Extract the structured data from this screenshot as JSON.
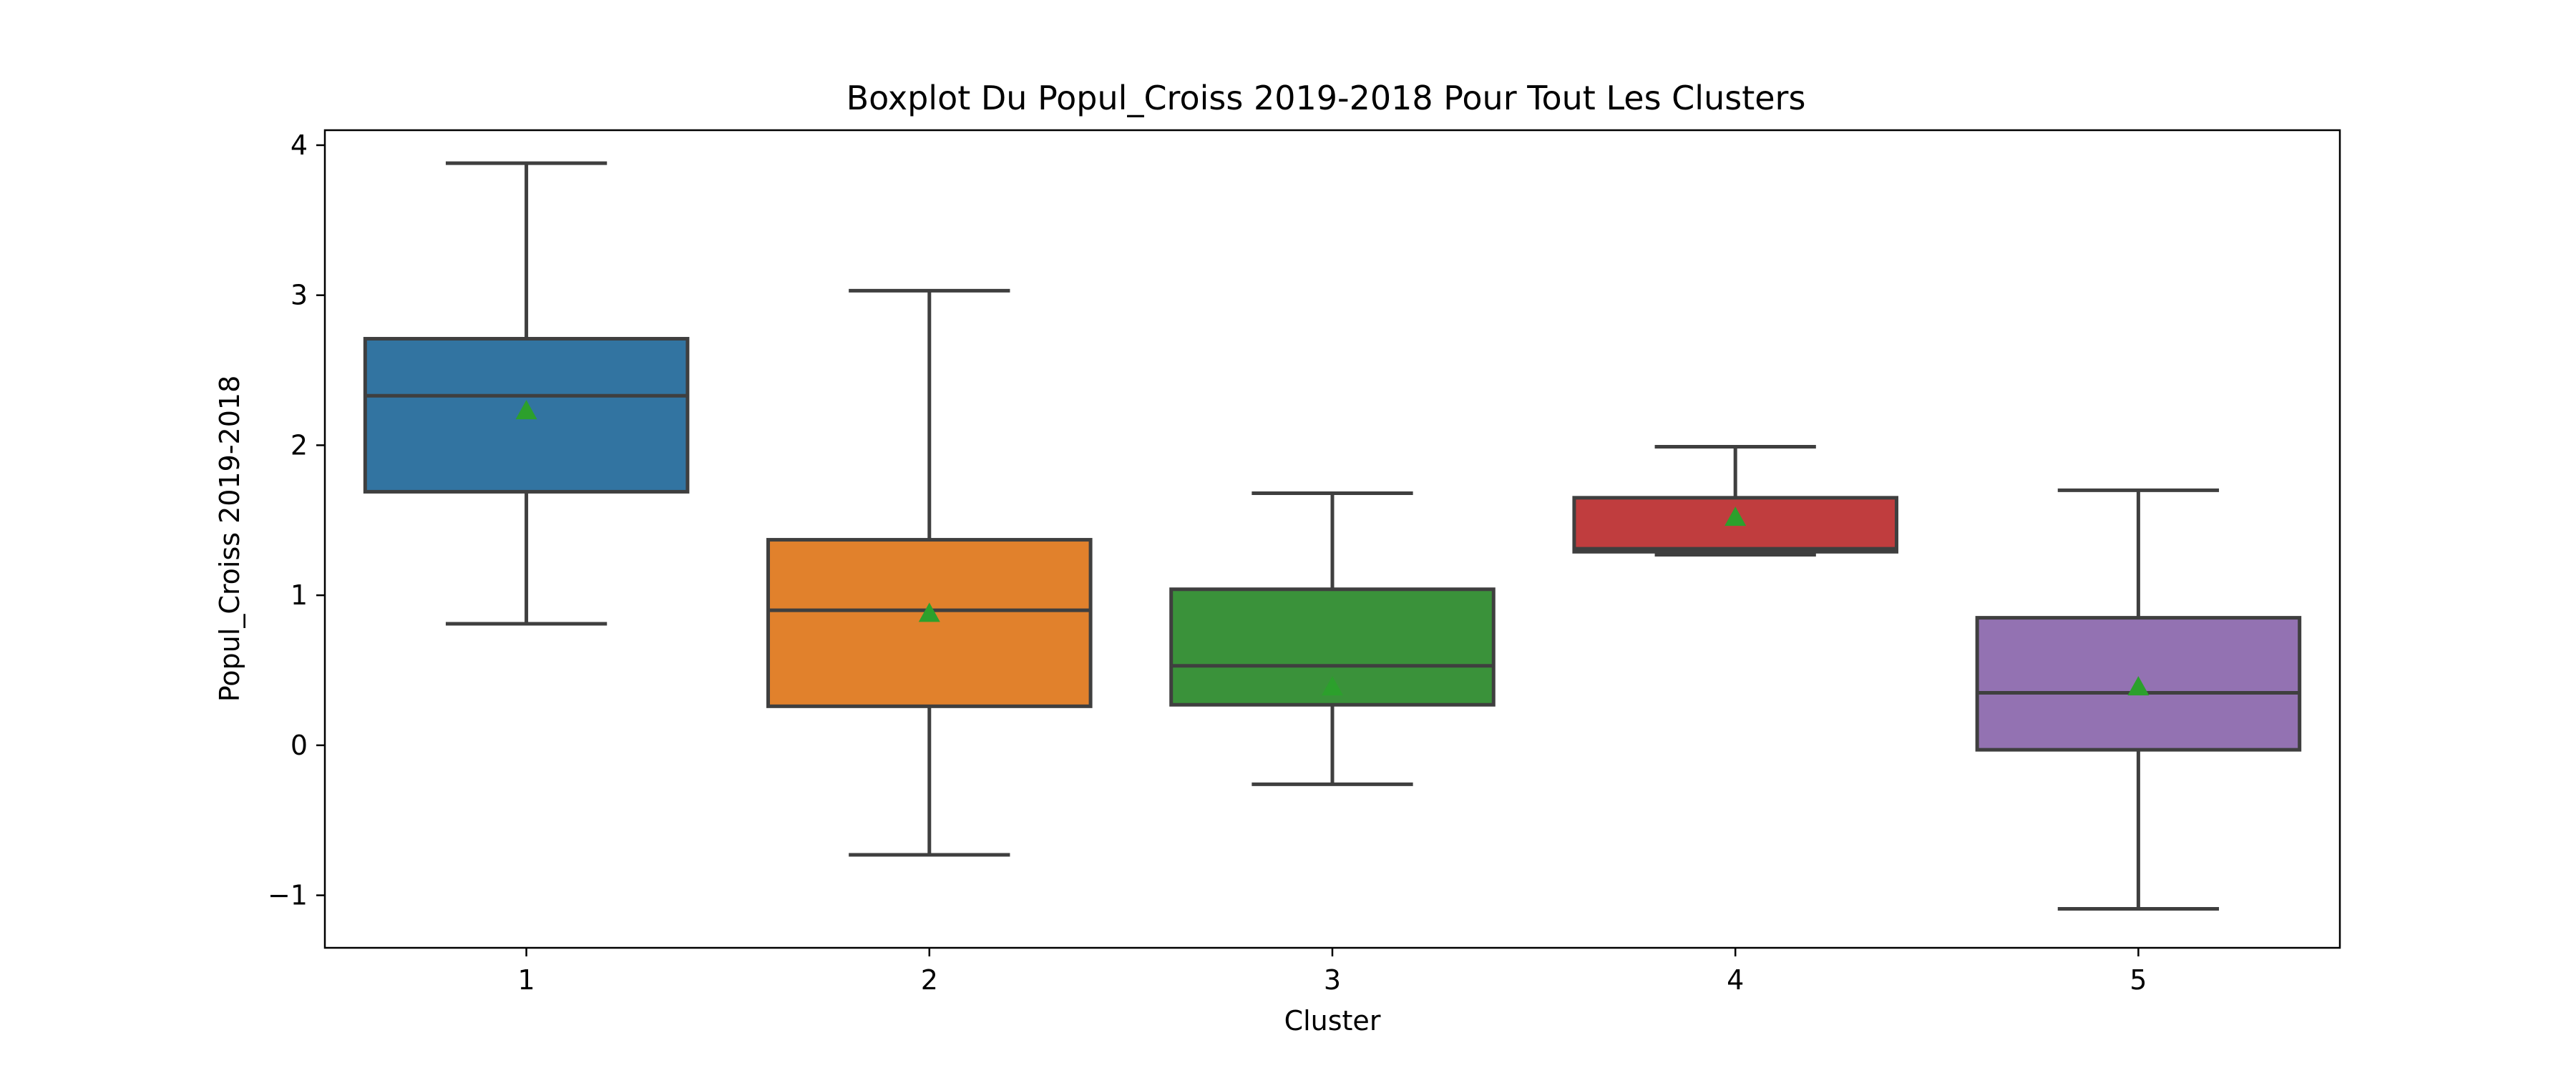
{
  "chart_data": {
    "type": "boxplot",
    "title": "Boxplot Du Popul_Croiss 2019-2018 Pour Tout Les Clusters",
    "xlabel": "Cluster",
    "ylabel": "Popul_Croiss 2019-2018",
    "ylim": [
      -1.35,
      4.1
    ],
    "yticks": [
      -1,
      0,
      1,
      2,
      3,
      4
    ],
    "ytick_labels": [
      "−1",
      "0",
      "1",
      "2",
      "3",
      "4"
    ],
    "grid": false,
    "show_means": true,
    "mean_marker_color": "#2ca02c",
    "line_color": "#3f3f3f",
    "categories": [
      "1",
      "2",
      "3",
      "4",
      "5"
    ],
    "boxes": [
      {
        "category": "1",
        "whisker_low": 0.81,
        "q1": 1.69,
        "median": 2.33,
        "q3": 2.71,
        "whisker_high": 3.88,
        "mean": 2.23,
        "color": "#3274a1"
      },
      {
        "category": "2",
        "whisker_low": -0.73,
        "q1": 0.26,
        "median": 0.9,
        "q3": 1.37,
        "whisker_high": 3.03,
        "mean": 0.88,
        "color": "#e1812c"
      },
      {
        "category": "3",
        "whisker_low": -0.26,
        "q1": 0.27,
        "median": 0.53,
        "q3": 1.04,
        "whisker_high": 1.68,
        "mean": 0.39,
        "color": "#3a923a"
      },
      {
        "category": "4",
        "whisker_low": 1.27,
        "q1": 1.29,
        "median": 1.31,
        "q3": 1.65,
        "whisker_high": 1.99,
        "mean": 1.52,
        "color": "#c03d3e"
      },
      {
        "category": "5",
        "whisker_low": -1.09,
        "q1": -0.03,
        "median": 0.35,
        "q3": 0.85,
        "whisker_high": 1.7,
        "mean": 0.39,
        "color": "#9372b2"
      }
    ]
  }
}
